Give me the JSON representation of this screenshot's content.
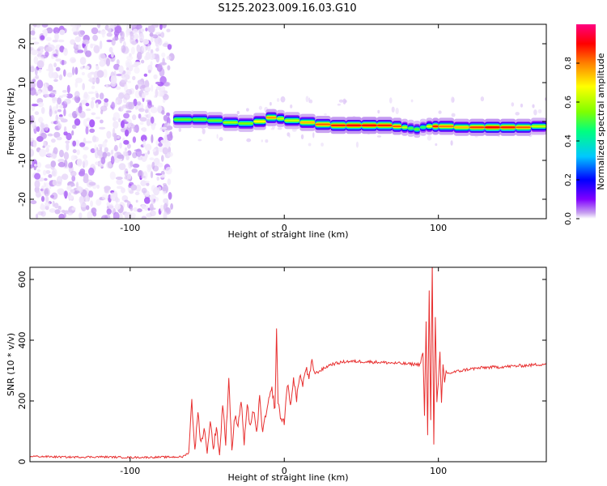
{
  "figure": {
    "title": "S125.2023.009.16.03.G10"
  },
  "chart_data": [
    {
      "type": "heatmap",
      "title": "",
      "xlabel": "Height of straight line (km)",
      "ylabel": "Frequency (Hz)",
      "xlim": [
        -165,
        170
      ],
      "ylim": [
        -25,
        25
      ],
      "xticks": [
        -100,
        0,
        100
      ],
      "yticks": [
        -20,
        -10,
        0,
        10,
        20
      ],
      "grid": false,
      "colorbar": {
        "label": "Normalized spectral amplitude",
        "range": [
          0.0,
          1.0
        ],
        "ticks": [
          "0.0",
          "0.2",
          "0.4",
          "0.6",
          "0.8"
        ],
        "tick_values": [
          0.0,
          0.2,
          0.4,
          0.6,
          0.8
        ],
        "colormap": [
          "#ffffff",
          "#c8a2f0",
          "#8000ff",
          "#0000ff",
          "#00c8ff",
          "#00ff80",
          "#80ff00",
          "#ffff00",
          "#ff8000",
          "#ff0000",
          "#ff0080"
        ]
      },
      "noise_region_x": [
        -165,
        -73
      ],
      "ridge": {
        "x": [
          -72,
          -60,
          -50,
          -40,
          -30,
          -20,
          -12,
          -5,
          0,
          10,
          20,
          30,
          40,
          50,
          60,
          70,
          76,
          80,
          84,
          88,
          92,
          96,
          100,
          110,
          120,
          130,
          140,
          150,
          160,
          170
        ],
        "freq": [
          1,
          0,
          1,
          -0.5,
          0,
          -1,
          1,
          1,
          0.5,
          0,
          -0.5,
          -1,
          -1,
          -1,
          -1,
          -1,
          -1.5,
          -1.5,
          -2,
          -2,
          -1,
          -1.5,
          -1,
          -1.5,
          -1.5,
          -1.5,
          -1.5,
          -1.5,
          -1.5,
          -1
        ],
        "amp": [
          0.55,
          0.6,
          0.55,
          0.6,
          0.65,
          0.55,
          0.85,
          0.7,
          0.6,
          0.7,
          0.8,
          0.85,
          0.9,
          0.9,
          0.9,
          0.85,
          0.8,
          0.5,
          0.6,
          0.55,
          0.5,
          0.85,
          0.9,
          0.7,
          0.8,
          0.9,
          0.9,
          0.85,
          0.8,
          0.5
        ]
      }
    },
    {
      "type": "line",
      "title": "",
      "xlabel": "Height of straight line (km)",
      "ylabel": "SNR (10 * v/v)",
      "xlim": [
        -165,
        170
      ],
      "ylim": [
        0,
        640
      ],
      "xticks": [
        -100,
        0,
        100
      ],
      "yticks": [
        0,
        200,
        400,
        600
      ],
      "grid": false,
      "color": "#e83030",
      "series": [
        {
          "x": [
            -165,
            -140,
            -120,
            -100,
            -80,
            -66,
            -62,
            -60,
            -58,
            -56,
            -54,
            -52,
            -50,
            -48,
            -46,
            -44,
            -42,
            -40,
            -38,
            -36,
            -34,
            -32,
            -30,
            -28,
            -26,
            -24,
            -22,
            -20,
            -18,
            -16,
            -14,
            -12,
            -10,
            -8,
            -6,
            -5,
            -4,
            -2,
            0,
            2,
            4,
            6,
            8,
            10,
            12,
            14,
            16,
            18,
            20,
            25,
            30,
            35,
            40,
            50,
            60,
            70,
            80,
            88,
            90,
            91,
            92,
            93,
            94,
            95,
            96,
            97,
            98,
            99,
            100,
            101,
            102,
            103,
            104,
            105,
            106,
            110,
            120,
            130,
            140,
            150,
            160,
            170
          ],
          "y": [
            18,
            15,
            16,
            14,
            15,
            16,
            30,
            200,
            40,
            160,
            60,
            110,
            30,
            140,
            40,
            120,
            20,
            190,
            60,
            280,
            40,
            150,
            120,
            200,
            60,
            180,
            120,
            170,
            90,
            210,
            100,
            150,
            200,
            240,
            170,
            440,
            190,
            140,
            130,
            260,
            180,
            280,
            200,
            290,
            250,
            310,
            270,
            330,
            290,
            305,
            320,
            325,
            330,
            330,
            328,
            325,
            322,
            320,
            360,
            150,
            460,
            90,
            560,
            140,
            650,
            60,
            480,
            200,
            260,
            360,
            190,
            320,
            260,
            300,
            290,
            295,
            305,
            310,
            312,
            315,
            318,
            322
          ]
        }
      ]
    }
  ]
}
